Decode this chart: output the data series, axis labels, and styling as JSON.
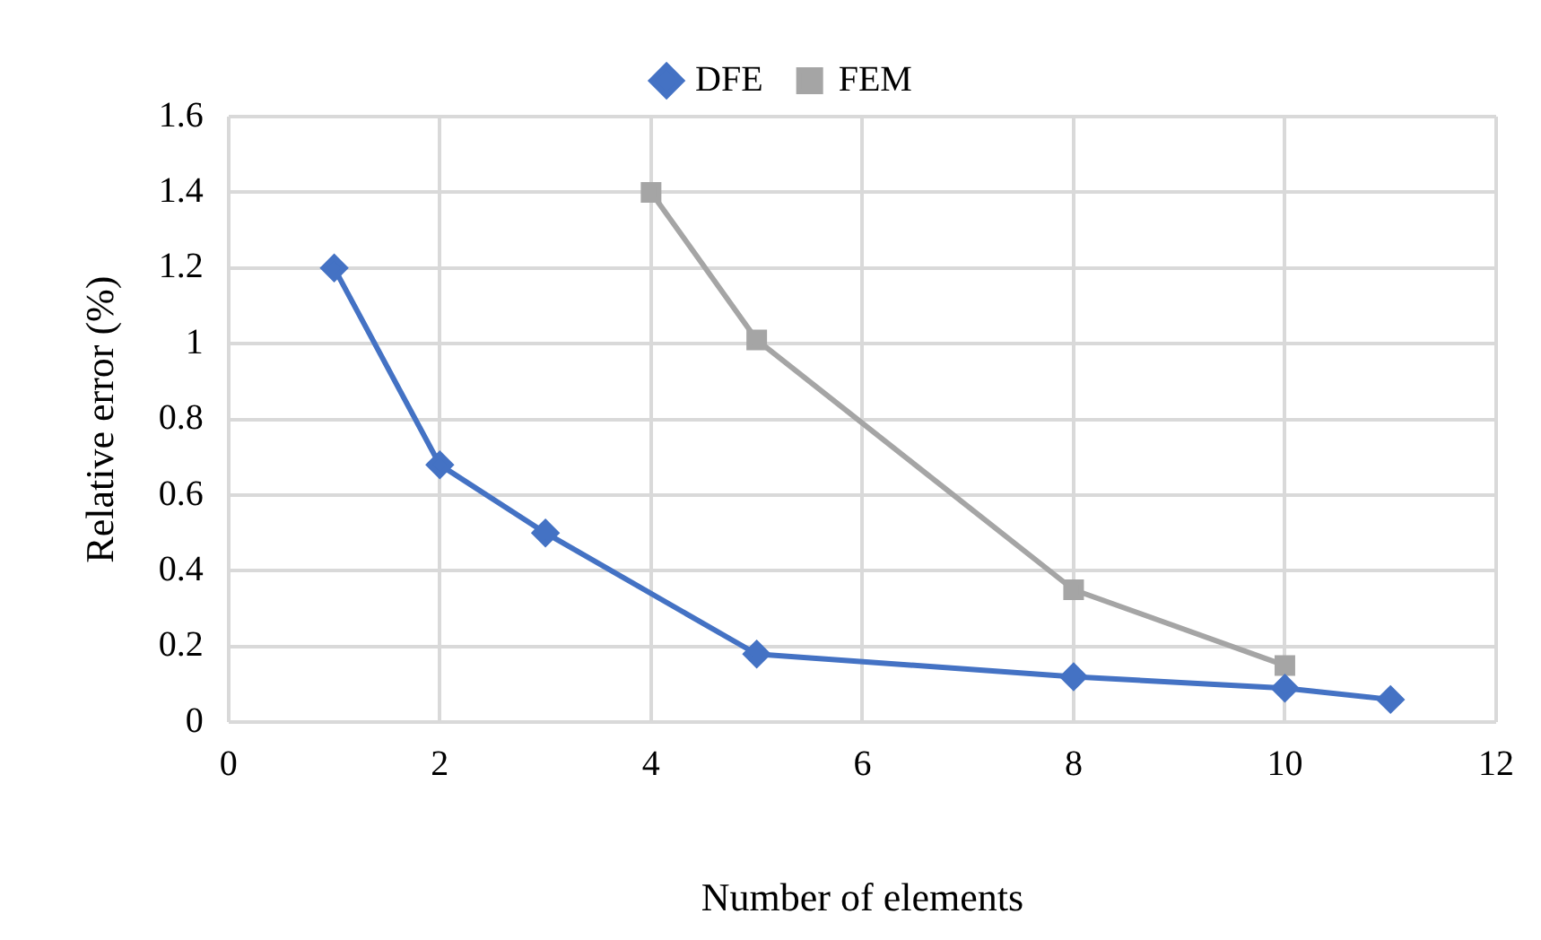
{
  "chart_data": {
    "type": "line",
    "xlabel": "Number of elements",
    "ylabel": "Relative error (%)",
    "xlim": [
      0,
      12
    ],
    "xticks": [
      0,
      2,
      4,
      6,
      8,
      10,
      12
    ],
    "ylim": [
      0,
      1.6
    ],
    "yticks": [
      0,
      0.2,
      0.4,
      0.6,
      0.8,
      1,
      1.2,
      1.4,
      1.6
    ],
    "grid": true,
    "legend": "top",
    "line_style": "solid",
    "series": [
      {
        "name": "DFE",
        "color": "#4472c4",
        "marker": "diamond",
        "x": [
          1,
          2,
          3,
          5,
          8,
          10,
          11
        ],
        "values": [
          1.2,
          0.68,
          0.5,
          0.18,
          0.12,
          0.09,
          0.06
        ]
      },
      {
        "name": "FEM",
        "color": "#a5a5a5",
        "marker": "square",
        "x": [
          4,
          5,
          8,
          10
        ],
        "values": [
          1.4,
          1.01,
          0.35,
          0.15
        ]
      }
    ]
  }
}
